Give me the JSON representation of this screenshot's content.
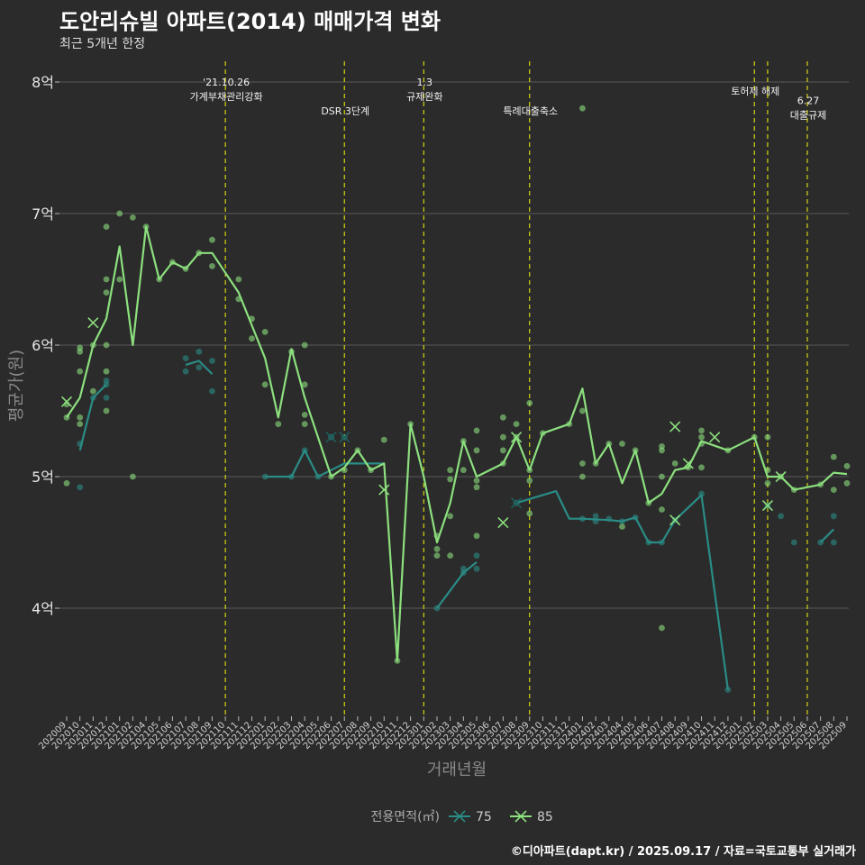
{
  "header": {
    "title": "도안리슈빌 아파트(2014) 매매가격 변화",
    "subtitle": "최근 5개년 한정"
  },
  "footer": {
    "caption": "©디아파트(dapt.kr) / 2025.09.17 / 자료=국토교통부 실거래가"
  },
  "colors": {
    "background": "#2b2b2b",
    "s75": "#2a8c86",
    "s85": "#8ce07e",
    "vline": "#d4d414",
    "grid": "#5a5a5a"
  },
  "chart_data": {
    "type": "line",
    "xlabel": "거래년월",
    "ylabel": "평균가(원)",
    "ylim": [
      3.25,
      8.1
    ],
    "yticks": [
      {
        "v": 4,
        "label": "4억"
      },
      {
        "v": 5,
        "label": "5억"
      },
      {
        "v": 6,
        "label": "6억"
      },
      {
        "v": 7,
        "label": "7억"
      },
      {
        "v": 8,
        "label": "8억"
      }
    ],
    "x": [
      "202009",
      "202010",
      "202011",
      "202012",
      "202101",
      "202102",
      "202104",
      "202105",
      "202106",
      "202107",
      "202108",
      "202109",
      "202110",
      "202111",
      "202112",
      "202201",
      "202202",
      "202203",
      "202204",
      "202205",
      "202206",
      "202207",
      "202208",
      "202209",
      "202210",
      "202211",
      "202212",
      "202301",
      "202302",
      "202303",
      "202304",
      "202305",
      "202306",
      "202307",
      "202308",
      "202309",
      "202310",
      "202311",
      "202312",
      "202401",
      "202402",
      "202403",
      "202404",
      "202405",
      "202406",
      "202407",
      "202408",
      "202409",
      "202410",
      "202411",
      "202412",
      "202501",
      "202502",
      "202503",
      "202504",
      "202505",
      "202506",
      "202507",
      "202508",
      "202509"
    ],
    "legend": {
      "title": "전용면적(㎡)",
      "position": "bottom"
    },
    "series": [
      {
        "name": "75",
        "color": "#2a8c86",
        "line_segments": [
          [
            [
              "202010",
              5.2
            ],
            [
              "202011",
              5.6
            ],
            [
              "202012",
              5.7
            ]
          ],
          [
            [
              "202107",
              5.85
            ],
            [
              "202108",
              5.88
            ],
            [
              "202109",
              5.78
            ]
          ],
          [
            [
              "202201",
              5.0
            ],
            [
              "202203",
              5.0
            ],
            [
              "202204",
              5.2
            ],
            [
              "202205",
              5.0
            ],
            [
              "202206",
              5.05
            ],
            [
              "202207",
              5.1
            ],
            [
              "202208",
              5.1
            ],
            [
              "202209",
              5.1
            ],
            [
              "202210",
              5.1
            ]
          ],
          [
            [
              "202302",
              4.0
            ],
            [
              "202304",
              4.27
            ],
            [
              "202305",
              4.35
            ]
          ],
          [
            [
              "202308",
              4.8
            ],
            [
              "202311",
              4.89
            ],
            [
              "202312",
              4.68
            ],
            [
              "202401",
              4.68
            ],
            [
              "202403",
              4.67
            ],
            [
              "202404",
              4.66
            ],
            [
              "202405",
              4.69
            ],
            [
              "202406",
              4.5
            ],
            [
              "202407",
              4.5
            ],
            [
              "202408",
              4.67
            ],
            [
              "202410",
              4.86
            ],
            [
              "202412",
              3.38
            ]
          ],
          [
            [
              "202507",
              4.5
            ],
            [
              "202508",
              4.6
            ]
          ]
        ],
        "points": [
          [
            "202010",
            5.25
          ],
          [
            "202010",
            4.92
          ],
          [
            "202011",
            5.6
          ],
          [
            "202012",
            5.7
          ],
          [
            "202012",
            5.73
          ],
          [
            "202012",
            5.6
          ],
          [
            "202107",
            5.9
          ],
          [
            "202107",
            5.8
          ],
          [
            "202108",
            5.95
          ],
          [
            "202108",
            5.83
          ],
          [
            "202109",
            5.88
          ],
          [
            "202109",
            5.65
          ],
          [
            "202201",
            5.0
          ],
          [
            "202203",
            5.0
          ],
          [
            "202204",
            5.2
          ],
          [
            "202205",
            5.0
          ],
          [
            "202206",
            5.3
          ],
          [
            "202207",
            5.3
          ],
          [
            "202302",
            4.0
          ],
          [
            "202304",
            4.27
          ],
          [
            "202304",
            4.3
          ],
          [
            "202305",
            4.4
          ],
          [
            "202305",
            4.3
          ],
          [
            "202308",
            4.8
          ],
          [
            "202401",
            4.68
          ],
          [
            "202402",
            4.66
          ],
          [
            "202402",
            4.7
          ],
          [
            "202403",
            4.68
          ],
          [
            "202404",
            4.66
          ],
          [
            "202405",
            4.69
          ],
          [
            "202406",
            4.5
          ],
          [
            "202407",
            4.5
          ],
          [
            "202408",
            4.67
          ],
          [
            "202410",
            4.87
          ],
          [
            "202412",
            3.38
          ],
          [
            "202503",
            4.78
          ],
          [
            "202504",
            4.7
          ],
          [
            "202505",
            4.5
          ],
          [
            "202507",
            4.5
          ],
          [
            "202508",
            4.7
          ],
          [
            "202508",
            4.5
          ]
        ],
        "crosses": [
          [
            "202206",
            5.3
          ],
          [
            "202207",
            5.3
          ],
          [
            "202308",
            4.8
          ]
        ]
      },
      {
        "name": "85",
        "color": "#8ce07e",
        "line": [
          [
            "202009",
            5.45
          ],
          [
            "202010",
            5.6
          ],
          [
            "202011",
            6.0
          ],
          [
            "202012",
            6.2
          ],
          [
            "202101",
            6.75
          ],
          [
            "202102",
            6.0
          ],
          [
            "202104",
            6.9
          ],
          [
            "202105",
            6.5
          ],
          [
            "202106",
            6.63
          ],
          [
            "202107",
            6.58
          ],
          [
            "202108",
            6.7
          ],
          [
            "202109",
            6.7
          ],
          [
            "202110",
            6.55
          ],
          [
            "202111",
            6.4
          ],
          [
            "202112",
            6.15
          ],
          [
            "202201",
            5.9
          ],
          [
            "202202",
            5.45
          ],
          [
            "202203",
            5.97
          ],
          [
            "202204",
            5.6
          ],
          [
            "202205",
            5.3
          ],
          [
            "202206",
            5.0
          ],
          [
            "202207",
            5.07
          ],
          [
            "202208",
            5.2
          ],
          [
            "202209",
            5.05
          ],
          [
            "202210",
            5.1
          ],
          [
            "202211",
            3.6
          ],
          [
            "202212",
            5.4
          ],
          [
            "202301",
            5.0
          ],
          [
            "202302",
            4.5
          ],
          [
            "202303",
            4.8
          ],
          [
            "202304",
            5.27
          ],
          [
            "202305",
            5.0
          ],
          [
            "202307",
            5.1
          ],
          [
            "202308",
            5.3
          ],
          [
            "202309",
            5.05
          ],
          [
            "202310",
            5.33
          ],
          [
            "202312",
            5.4
          ],
          [
            "202401",
            5.67
          ],
          [
            "202402",
            5.1
          ],
          [
            "202403",
            5.25
          ],
          [
            "202404",
            4.95
          ],
          [
            "202405",
            5.2
          ],
          [
            "202406",
            4.8
          ],
          [
            "202407",
            4.87
          ],
          [
            "202408",
            5.05
          ],
          [
            "202409",
            5.07
          ],
          [
            "202410",
            5.27
          ],
          [
            "202412",
            5.2
          ],
          [
            "202502",
            5.3
          ],
          [
            "202503",
            5.0
          ],
          [
            "202504",
            5.0
          ],
          [
            "202505",
            4.9
          ],
          [
            "202507",
            4.94
          ],
          [
            "202508",
            5.03
          ],
          [
            "202509",
            5.02
          ]
        ],
        "points": [
          [
            "202009",
            4.95
          ],
          [
            "202009",
            5.45
          ],
          [
            "202009",
            5.55
          ],
          [
            "202010",
            5.4
          ],
          [
            "202010",
            5.45
          ],
          [
            "202010",
            5.8
          ],
          [
            "202010",
            5.95
          ],
          [
            "202010",
            5.98
          ],
          [
            "202011",
            6.0
          ],
          [
            "202011",
            5.65
          ],
          [
            "202012",
            6.0
          ],
          [
            "202012",
            5.5
          ],
          [
            "202012",
            6.9
          ],
          [
            "202012",
            6.5
          ],
          [
            "202012",
            6.4
          ],
          [
            "202012",
            5.8
          ],
          [
            "202101",
            7.0
          ],
          [
            "202101",
            6.5
          ],
          [
            "202102",
            6.97
          ],
          [
            "202102",
            5.0
          ],
          [
            "202104",
            6.9
          ],
          [
            "202105",
            6.5
          ],
          [
            "202106",
            6.63
          ],
          [
            "202107",
            6.58
          ],
          [
            "202108",
            6.7
          ],
          [
            "202109",
            6.8
          ],
          [
            "202109",
            6.6
          ],
          [
            "202111",
            6.5
          ],
          [
            "202111",
            6.35
          ],
          [
            "202112",
            6.2
          ],
          [
            "202112",
            6.05
          ],
          [
            "202201",
            6.1
          ],
          [
            "202201",
            5.7
          ],
          [
            "202202",
            5.4
          ],
          [
            "202203",
            5.95
          ],
          [
            "202204",
            6.0
          ],
          [
            "202204",
            5.7
          ],
          [
            "202204",
            5.47
          ],
          [
            "202204",
            5.4
          ],
          [
            "202206",
            5.0
          ],
          [
            "202207",
            5.05
          ],
          [
            "202208",
            5.2
          ],
          [
            "202209",
            5.05
          ],
          [
            "202210",
            5.28
          ],
          [
            "202211",
            3.6
          ],
          [
            "202212",
            5.4
          ],
          [
            "202302",
            4.45
          ],
          [
            "202302",
            4.4
          ],
          [
            "202302",
            4.55
          ],
          [
            "202303",
            4.7
          ],
          [
            "202303",
            4.4
          ],
          [
            "202303",
            5.05
          ],
          [
            "202303",
            4.98
          ],
          [
            "202304",
            5.27
          ],
          [
            "202304",
            5.05
          ],
          [
            "202305",
            5.35
          ],
          [
            "202305",
            5.2
          ],
          [
            "202305",
            4.97
          ],
          [
            "202305",
            4.92
          ],
          [
            "202305",
            4.55
          ],
          [
            "202307",
            5.45
          ],
          [
            "202307",
            5.3
          ],
          [
            "202307",
            5.2
          ],
          [
            "202307",
            5.1
          ],
          [
            "202308",
            5.4
          ],
          [
            "202308",
            5.3
          ],
          [
            "202309",
            5.56
          ],
          [
            "202309",
            5.05
          ],
          [
            "202309",
            4.97
          ],
          [
            "202309",
            4.72
          ],
          [
            "202310",
            5.33
          ],
          [
            "202312",
            5.4
          ],
          [
            "202401",
            7.8
          ],
          [
            "202401",
            5.5
          ],
          [
            "202401",
            5.1
          ],
          [
            "202401",
            5.0
          ],
          [
            "202402",
            5.1
          ],
          [
            "202403",
            5.25
          ],
          [
            "202404",
            5.25
          ],
          [
            "202404",
            4.62
          ],
          [
            "202405",
            5.2
          ],
          [
            "202406",
            4.8
          ],
          [
            "202407",
            5.23
          ],
          [
            "202407",
            5.2
          ],
          [
            "202407",
            5.0
          ],
          [
            "202407",
            4.75
          ],
          [
            "202407",
            3.85
          ],
          [
            "202408",
            5.1
          ],
          [
            "202409",
            5.07
          ],
          [
            "202410",
            5.35
          ],
          [
            "202410",
            5.3
          ],
          [
            "202410",
            5.25
          ],
          [
            "202410",
            5.07
          ],
          [
            "202412",
            5.2
          ],
          [
            "202502",
            5.3
          ],
          [
            "202503",
            5.3
          ],
          [
            "202503",
            5.05
          ],
          [
            "202503",
            4.95
          ],
          [
            "202504",
            5.0
          ],
          [
            "202505",
            4.9
          ],
          [
            "202507",
            4.94
          ],
          [
            "202508",
            5.15
          ],
          [
            "202508",
            4.9
          ],
          [
            "202509",
            5.08
          ],
          [
            "202509",
            4.95
          ]
        ],
        "crosses": [
          [
            "202009",
            5.57
          ],
          [
            "202011",
            6.17
          ],
          [
            "202210",
            4.9
          ],
          [
            "202307",
            4.65
          ],
          [
            "202308",
            5.3
          ],
          [
            "202408",
            5.38
          ],
          [
            "202408",
            4.67
          ],
          [
            "202409",
            5.1
          ],
          [
            "202411",
            5.3
          ],
          [
            "202503",
            4.78
          ],
          [
            "202504",
            5.0
          ]
        ]
      }
    ],
    "annotations": [
      {
        "x": "202110",
        "lines": [
          "'21.10.26",
          "가계부채관리강화"
        ],
        "y": 8.0
      },
      {
        "x": "202207",
        "lines": [
          "DSR 3단계"
        ],
        "y": 7.78
      },
      {
        "x": "202301",
        "lines": [
          "1.3",
          "규제완화"
        ],
        "y": 8.0
      },
      {
        "x": "202309",
        "lines": [
          "특례대출축소"
        ],
        "y": 7.78
      },
      {
        "x": "202502",
        "lines": [
          "토허제 해제"
        ],
        "y": 7.93
      },
      {
        "x": "202503",
        "lines": [],
        "y": 7.93
      },
      {
        "x": "202506",
        "lines": [
          "6.27",
          "대출규제"
        ],
        "y": 7.86
      }
    ]
  }
}
